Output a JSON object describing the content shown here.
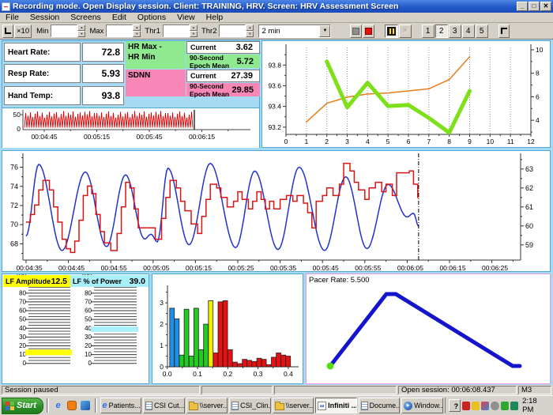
{
  "window": {
    "title": "Recording mode. Open Display session. Client: TRAINING, HRV. Screen: HRV Assessment Screen"
  },
  "menu": {
    "items": [
      "File",
      "Session",
      "Screens",
      "Edit",
      "Options",
      "View",
      "Help"
    ]
  },
  "toolbar": {
    "x10": "×10",
    "min": "Min",
    "max": "Max",
    "th1": "Thr1",
    "th2": "Thr2",
    "interval": "2 min",
    "screens": [
      "1",
      "2",
      "3",
      "4",
      "5"
    ],
    "active_screen": "2",
    "icons": [
      "axes-icon",
      "stop-square-icon",
      "record-square-icon",
      "pause-icon",
      "gear-icon",
      "layout-icon"
    ],
    "gear_glyph": "✳",
    "combo_arrow": "▼",
    "spin_up": "▲",
    "spin_down": "▼"
  },
  "vitals": {
    "heart_rate_label": "Heart Rate:",
    "heart_rate": "72.8",
    "resp_rate_label": "Resp Rate:",
    "resp_rate": "5.93",
    "hand_temp_label": "Hand Temp:",
    "hand_temp": "93.8"
  },
  "stats": {
    "hr_range_label": "HR Max -\nHR Min",
    "hr_current_label": "Current",
    "hr_current": "3.62",
    "hr_epoch_label": "90-Second Epoch Mean",
    "hr_epoch": "5.72",
    "sdnn_label": "SDNN",
    "sdnn_current_label": "Current",
    "sdnn_current": "27.39",
    "sdnn_epoch_label": "90-Second Epoch Mean",
    "sdnn_epoch": "29.85",
    "green_color": "#8fe98f",
    "pink_color": "#f687b7"
  },
  "lf": {
    "amp_label": "LF Amplitude",
    "amp_value": "12.5",
    "amp_color": "#ffff00",
    "power_label": "LF % of Power",
    "power_value": "39.0",
    "power_color": "#a9f0fa"
  },
  "pacer_label": "Pacer Rate: 5.500",
  "statusbar": {
    "left": "Session paused",
    "session": "Open session: 00:06:08.437",
    "m3": "M3"
  },
  "taskbar": {
    "start": "Start",
    "help_glyph": "?",
    "media_glyph": "▶",
    "ie_glyph": "e",
    "app_glyph": "∞",
    "tasks": [
      {
        "label": "Patients...",
        "icon": "ie"
      },
      {
        "label": "CSI Cut...",
        "icon": "doc"
      },
      {
        "label": "\\\\server...",
        "icon": "folder"
      },
      {
        "label": "CSI_Clin...",
        "icon": "doc"
      },
      {
        "label": "\\\\server...",
        "icon": "folder"
      },
      {
        "label": "Infiniti ...",
        "icon": "app",
        "active": true
      },
      {
        "label": "Docume...",
        "icon": "doc"
      },
      {
        "label": "Window...",
        "icon": "media"
      }
    ],
    "tray_icons": [
      "ati-icon",
      "volume-icon",
      "display-icon",
      "device-icon",
      "shield-icon",
      "network-icon"
    ],
    "clock": "2:18 PM"
  },
  "chart_data": [
    {
      "id": "strip",
      "type": "line",
      "series_name": "raw-signal",
      "color": "#dd0000",
      "y_ticks": [
        "50",
        "0"
      ],
      "ylim": [
        0,
        60
      ],
      "x_ticks": [
        "00:04:45",
        "00:05:15",
        "00:05:45",
        "00:06:15"
      ],
      "envelope": [
        38,
        30,
        40,
        26,
        36,
        43,
        29,
        39,
        24,
        33,
        42,
        28,
        37,
        41,
        25,
        35,
        44,
        30,
        39,
        33,
        43,
        27,
        36,
        40,
        31,
        42,
        34,
        44,
        28,
        38
      ],
      "cursor": true
    },
    {
      "id": "temp_epoch",
      "type": "line",
      "xlim": [
        0,
        12
      ],
      "x_ticks": [
        "0",
        "1",
        "2",
        "3",
        "4",
        "5",
        "6",
        "7",
        "8",
        "9",
        "10",
        "11",
        "12"
      ],
      "left_axis": {
        "range": [
          93.13,
          93.97
        ],
        "ticks": [
          93.2,
          93.4,
          93.6,
          93.8
        ]
      },
      "right_axis": {
        "range": [
          2.8,
          10.2
        ],
        "ticks": [
          4,
          6,
          8,
          10
        ]
      },
      "grid": "dotted-vertical",
      "series": [
        {
          "name": "hand-temp",
          "axis": "left",
          "color": "#e87d1a",
          "width": 1.5,
          "points": [
            [
              1,
              93.25
            ],
            [
              2,
              93.43
            ],
            [
              3,
              93.49
            ],
            [
              4,
              93.52
            ],
            [
              5,
              93.53
            ],
            [
              6,
              93.55
            ],
            [
              7,
              93.57
            ],
            [
              8,
              93.66
            ],
            [
              9,
              93.88
            ]
          ]
        },
        {
          "name": "hr-range-epoch-mean",
          "axis": "right",
          "color": "#7de019",
          "width": 5,
          "points": [
            [
              2,
              9.0
            ],
            [
              3,
              5.1
            ],
            [
              4,
              7.2
            ],
            [
              5,
              5.2
            ],
            [
              6,
              5.3
            ],
            [
              7,
              4.2
            ],
            [
              8,
              2.95
            ],
            [
              9,
              6.5
            ]
          ]
        }
      ]
    },
    {
      "id": "main",
      "type": "line",
      "xlim": [
        0,
        117
      ],
      "x_tick_step": 10,
      "x_tick_labels": [
        "00:04:35",
        "00:04:45",
        "00:04:55",
        "00:05:05",
        "00:05:15",
        "00:05:25",
        "00:05:35",
        "00:05:45",
        "00:05:55",
        "00:06:05",
        "00:06:15",
        "00:06:25"
      ],
      "left_axis": {
        "range": [
          66.3,
          77.2
        ],
        "ticks": [
          68,
          70,
          72,
          74,
          76
        ]
      },
      "right_axis": {
        "range": [
          58.2,
          63.7
        ],
        "ticks": [
          59,
          60,
          61,
          62,
          63
        ]
      },
      "cursor_t": 92.7,
      "blue_series": {
        "name": "heart-rate",
        "color": "#2233cc",
        "keypoints": [
          [
            0,
            68.8
          ],
          [
            3,
            76.3
          ],
          [
            8.5,
            67.3
          ],
          [
            14,
            75.5
          ],
          [
            19,
            67.7
          ],
          [
            23.5,
            75.2
          ],
          [
            28,
            68.5
          ],
          [
            29.5,
            69.0
          ],
          [
            31,
            68.2
          ],
          [
            33.5,
            75.9
          ],
          [
            38.5,
            67.9
          ],
          [
            43.5,
            76.4
          ],
          [
            49.5,
            67.6
          ],
          [
            54,
            75.6
          ],
          [
            59.5,
            67.4
          ],
          [
            64.5,
            76.0
          ],
          [
            70.5,
            67.3
          ],
          [
            75.5,
            75.0
          ],
          [
            80.5,
            67.5
          ],
          [
            85.5,
            74.2
          ],
          [
            90,
            70.8
          ],
          [
            91.5,
            71.2
          ],
          [
            92.7,
            69.8
          ]
        ]
      },
      "red_series": {
        "name": "stepped-rate",
        "color": "#dd1414",
        "steps": [
          [
            0,
            60.2
          ],
          [
            1,
            60.6
          ],
          [
            2,
            61.1
          ],
          [
            3,
            61.9
          ],
          [
            4,
            62.4
          ],
          [
            5.5,
            61.9
          ],
          [
            6.5,
            61.0
          ],
          [
            7.5,
            60.2
          ],
          [
            8.5,
            59.3
          ],
          [
            9.5,
            58.8
          ],
          [
            10.5,
            58.6
          ],
          [
            11.5,
            59.2
          ],
          [
            12.5,
            60.3
          ],
          [
            13.5,
            61.6
          ],
          [
            14.5,
            62.1
          ],
          [
            15.5,
            61.7
          ],
          [
            16.5,
            60.6
          ],
          [
            17.5,
            59.7
          ],
          [
            18.5,
            59.1
          ],
          [
            20,
            58.7
          ],
          [
            21.5,
            59.6
          ],
          [
            22.5,
            61.0
          ],
          [
            23.5,
            62.3
          ],
          [
            24.5,
            62.0
          ],
          [
            25.5,
            60.9
          ],
          [
            26.5,
            59.9
          ],
          [
            30.5,
            59.3
          ],
          [
            32,
            60.4
          ],
          [
            33,
            61.5
          ],
          [
            34,
            62.4
          ],
          [
            35.5,
            62.0
          ],
          [
            36.5,
            61.3
          ],
          [
            37.5,
            60.8
          ],
          [
            39,
            60.1
          ],
          [
            40.5,
            59.6
          ],
          [
            41.5,
            60.5
          ],
          [
            42.5,
            61.4
          ],
          [
            43.5,
            62.2
          ],
          [
            45,
            62.0
          ],
          [
            46,
            61.5
          ],
          [
            47.5,
            61.0
          ],
          [
            49,
            61.3
          ],
          [
            50,
            61.8
          ],
          [
            51,
            61.4
          ],
          [
            52.5,
            60.9
          ],
          [
            53.5,
            61.3
          ],
          [
            54.5,
            61.8
          ],
          [
            55.5,
            61.4
          ],
          [
            56.5,
            60.9
          ],
          [
            57.5,
            61.3
          ],
          [
            58.5,
            60.9
          ],
          [
            60,
            61.4
          ],
          [
            61.5,
            61.6
          ],
          [
            63,
            61.3
          ],
          [
            64,
            61.6
          ],
          [
            65.5,
            61.2
          ],
          [
            66.5,
            60.7
          ],
          [
            67.5,
            59.9
          ],
          [
            68.5,
            61.3
          ],
          [
            70,
            61.6
          ],
          [
            71,
            62.0
          ],
          [
            72.5,
            61.6
          ],
          [
            74,
            62.2
          ],
          [
            75,
            63.3
          ],
          [
            76.5,
            62.9
          ],
          [
            77.5,
            62.3
          ],
          [
            78.5,
            61.9
          ],
          [
            80,
            61.4
          ],
          [
            81,
            62.0
          ],
          [
            82.5,
            62.3
          ],
          [
            84,
            61.8
          ],
          [
            85,
            62.2
          ],
          [
            86.5,
            61.6
          ],
          [
            87.5,
            62.8
          ],
          [
            90.5,
            62.9
          ],
          [
            91.5,
            62.2
          ],
          [
            92.5,
            61.5
          ]
        ]
      }
    },
    {
      "id": "lf_meters",
      "type": "meter",
      "scale_max": 100,
      "scale_step": 10,
      "meters": [
        {
          "name": "lf-amplitude",
          "value": 12.5,
          "color": "#ffff00"
        },
        {
          "name": "lf-percent-power",
          "value": 39,
          "color": "#a9f0fa"
        }
      ]
    },
    {
      "id": "spectrum",
      "type": "bar",
      "ylim": [
        0,
        3.45
      ],
      "y_ticks": [
        0,
        1,
        2,
        3
      ],
      "x_ticks": [
        "0.0",
        "0.1",
        "0.2",
        "0.3",
        "0.4"
      ],
      "x_start": 0.008,
      "x_step": 0.016,
      "bars": [
        {
          "h": 2.75,
          "c": "#1e90e8"
        },
        {
          "h": 2.25,
          "c": "#1e90e8"
        },
        {
          "h": 0.55,
          "c": "#22cc22"
        },
        {
          "h": 2.7,
          "c": "#22cc22"
        },
        {
          "h": 0.5,
          "c": "#22cc22"
        },
        {
          "h": 2.75,
          "c": "#22cc22"
        },
        {
          "h": 0.8,
          "c": "#22cc22"
        },
        {
          "h": 2.0,
          "c": "#22cc22"
        },
        {
          "h": 3.1,
          "c": "#f2ee00"
        },
        {
          "h": 0.65,
          "c": "#e81111"
        },
        {
          "h": 3.05,
          "c": "#e81111"
        },
        {
          "h": 3.1,
          "c": "#e81111"
        },
        {
          "h": 0.8,
          "c": "#e81111"
        },
        {
          "h": 0.22,
          "c": "#e81111"
        },
        {
          "h": 0.15,
          "c": "#e81111"
        },
        {
          "h": 0.35,
          "c": "#e81111"
        },
        {
          "h": 0.3,
          "c": "#e81111"
        },
        {
          "h": 0.25,
          "c": "#e81111"
        },
        {
          "h": 0.4,
          "c": "#e81111"
        },
        {
          "h": 0.35,
          "c": "#e81111"
        },
        {
          "h": 0.1,
          "c": "#e81111"
        },
        {
          "h": 0.45,
          "c": "#e81111"
        },
        {
          "h": 0.65,
          "c": "#e81111"
        },
        {
          "h": 0.55,
          "c": "#e81111"
        },
        {
          "h": 0.5,
          "c": "#e81111"
        }
      ]
    },
    {
      "id": "pacer",
      "type": "line",
      "color": "#1414cc",
      "width": 5,
      "points": [
        [
          30,
          116
        ],
        [
          101,
          25
        ],
        [
          113,
          25
        ],
        [
          261,
          116
        ],
        [
          270,
          116
        ]
      ],
      "marker": {
        "x": 30,
        "y": 116,
        "r": 4.5,
        "color": "#55dd11"
      }
    }
  ]
}
